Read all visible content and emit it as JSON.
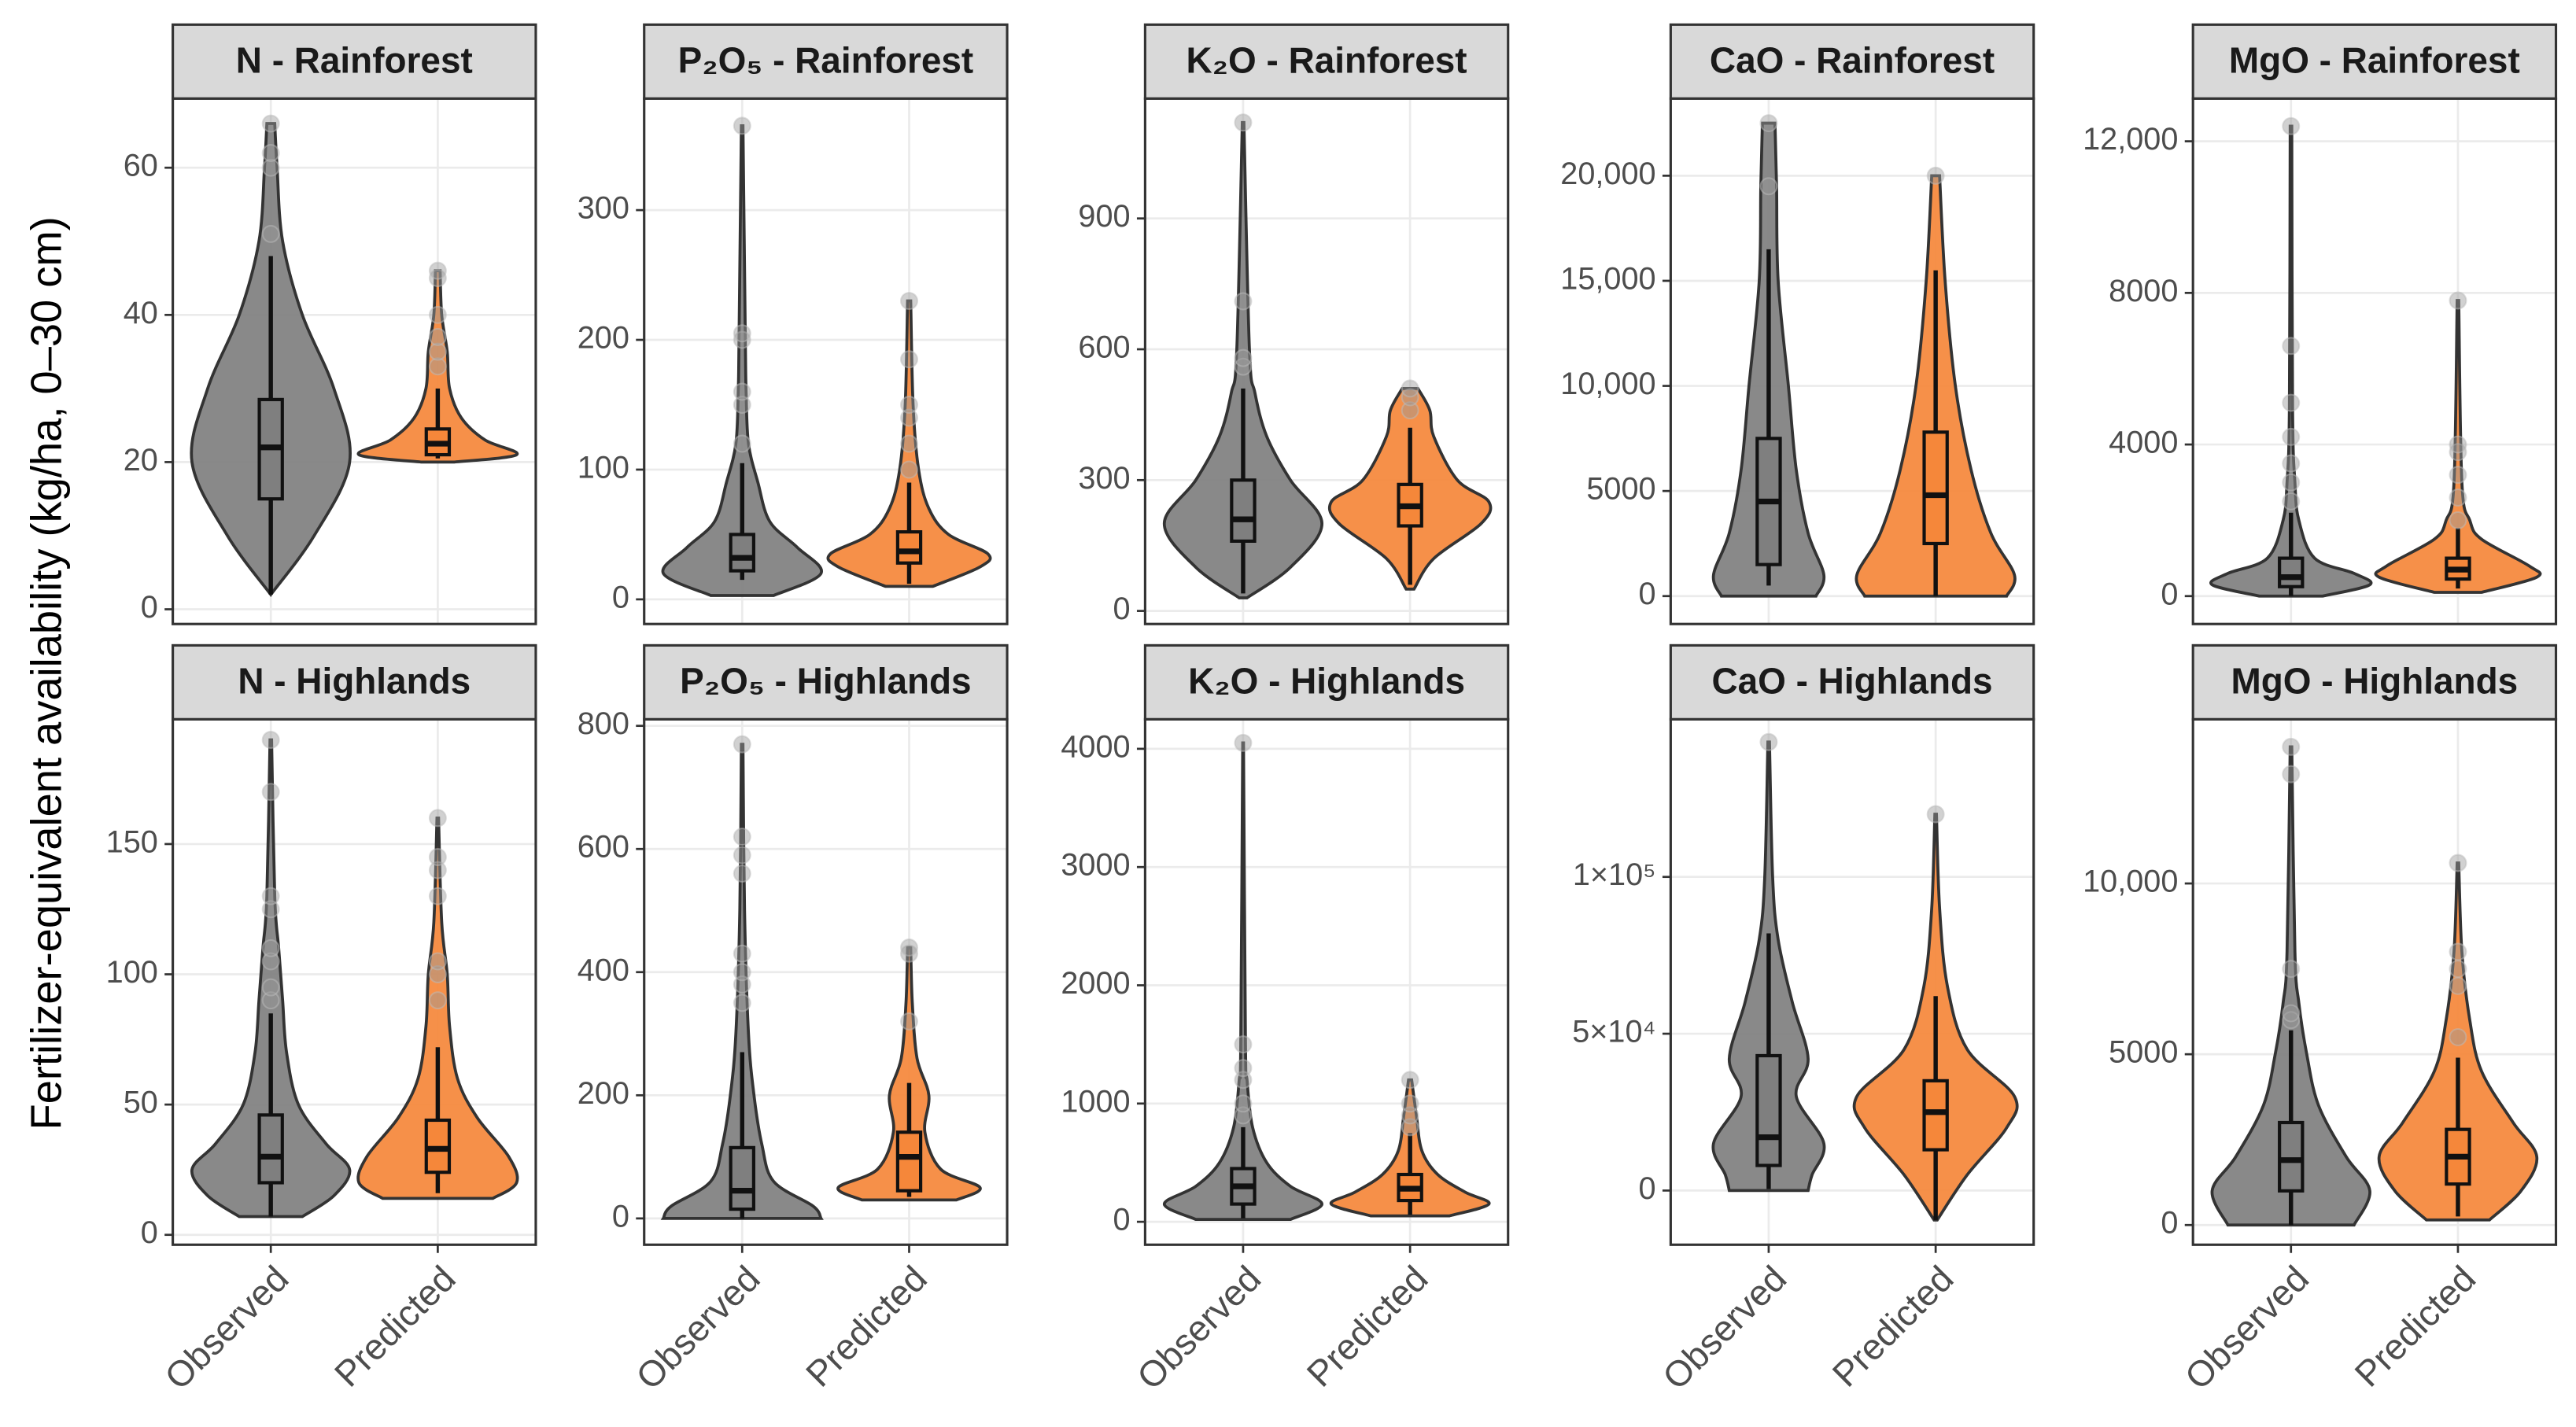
{
  "chart_data": {
    "type": "violin",
    "ylabel": "Fertilizer-equivalent availability (kg/ha, 0–30 cm)",
    "categories": [
      "Observed",
      "Predicted"
    ],
    "colors": [
      "#7f7f7f",
      "#f5873a"
    ],
    "grid": true,
    "panels": [
      {
        "title": "N - Rainforest",
        "ylim": [
          -2,
          69.4
        ],
        "yticks": [
          0,
          20,
          40,
          60
        ],
        "violins": [
          {
            "box": {
              "whisker_low": 2,
              "q1": 15,
              "median": 22,
              "q3": 28.5,
              "whisker_high": 48
            },
            "outliers": [
              51,
              60,
              62,
              66
            ],
            "violin": {
              "y": [
                2,
                10,
                20,
                30,
                40,
                50,
                60,
                66
              ],
              "width": [
                0,
                0.55,
                1,
                0.8,
                0.4,
                0.15,
                0.08,
                0.05
              ]
            }
          },
          {
            "box": {
              "whisker_low": 20.5,
              "q1": 21,
              "median": 22.5,
              "q3": 24.5,
              "whisker_high": 30
            },
            "outliers": [
              33,
              35,
              37,
              40,
              45,
              46
            ],
            "violin": {
              "y": [
                20,
                21,
                23,
                26,
                30,
                35,
                40,
                46
              ],
              "width": [
                0.2,
                1,
                0.6,
                0.3,
                0.15,
                0.12,
                0.05,
                0.03
              ]
            }
          }
        ]
      },
      {
        "title": "P₂O₅ -  Rainforest",
        "ylim": [
          -19,
          386
        ],
        "yticks": [
          0,
          100,
          200,
          300
        ],
        "violins": [
          {
            "box": {
              "whisker_low": 15,
              "q1": 22,
              "median": 32,
              "q3": 50,
              "whisker_high": 105
            },
            "outliers": [
              120,
              150,
              160,
              200,
              205,
              365
            ],
            "violin": {
              "y": [
                3,
                20,
                40,
                60,
                90,
                120,
                160,
                200,
                365
              ],
              "width": [
                0.4,
                1,
                0.7,
                0.35,
                0.2,
                0.08,
                0.05,
                0.04,
                0.01
              ]
            }
          },
          {
            "box": {
              "whisker_low": 12,
              "q1": 28,
              "median": 37,
              "q3": 52,
              "whisker_high": 90
            },
            "outliers": [
              100,
              120,
              140,
              150,
              185,
              230
            ],
            "violin": {
              "y": [
                10,
                25,
                35,
                50,
                70,
                100,
                150,
                230
              ],
              "width": [
                0.3,
                0.9,
                1,
                0.5,
                0.25,
                0.12,
                0.05,
                0.02
              ]
            }
          }
        ]
      },
      {
        "title": "K₂O -  Rainforest",
        "ylim": [
          -30,
          1175
        ],
        "yticks": [
          0,
          300,
          600,
          900
        ],
        "violins": [
          {
            "box": {
              "whisker_low": 40,
              "q1": 160,
              "median": 210,
              "q3": 300,
              "whisker_high": 510
            },
            "outliers": [
              560,
              580,
              710,
              1120
            ],
            "violin": {
              "y": [
                30,
                100,
                200,
                300,
                400,
                500,
                600,
                1120
              ],
              "width": [
                0.05,
                0.6,
                1,
                0.6,
                0.3,
                0.15,
                0.08,
                0.01
              ]
            }
          },
          {
            "box": {
              "whisker_low": 60,
              "q1": 195,
              "median": 240,
              "q3": 290,
              "whisker_high": 420
            },
            "outliers": [
              460,
              490,
              510
            ],
            "violin": {
              "y": [
                50,
                120,
                200,
                250,
                300,
                400,
                460,
                510
              ],
              "width": [
                0.05,
                0.3,
                0.9,
                1,
                0.6,
                0.3,
                0.25,
                0.1
              ]
            }
          }
        ]
      },
      {
        "title": "CaO - Rainforest",
        "ylim": [
          -1328,
          23672
        ],
        "yticks": [
          0,
          5000,
          {
            "value": 10000,
            "label": "10,000"
          },
          {
            "value": 15000,
            "label": "15,000"
          },
          {
            "value": 20000,
            "label": "20,000"
          }
        ],
        "violins": [
          {
            "box": {
              "whisker_low": 500,
              "q1": 1500,
              "median": 4500,
              "q3": 7500,
              "whisker_high": 16500
            },
            "outliers": [
              19500,
              22500
            ],
            "violin": {
              "y": [
                0,
                1000,
                3000,
                6000,
                10000,
                15000,
                19500,
                22500
              ],
              "width": [
                0.6,
                0.7,
                0.5,
                0.35,
                0.25,
                0.12,
                0.1,
                0.08
              ]
            }
          },
          {
            "box": {
              "whisker_low": 0,
              "q1": 2500,
              "median": 4800,
              "q3": 7800,
              "whisker_high": 15500
            },
            "outliers": [
              20000
            ],
            "violin": {
              "y": [
                0,
                1000,
                3000,
                6000,
                10000,
                15000,
                20000
              ],
              "width": [
                0.9,
                1,
                0.7,
                0.45,
                0.25,
                0.12,
                0.05
              ]
            }
          }
        ]
      },
      {
        "title": "MgO - Rainforest",
        "ylim": [
          -736,
          13128
        ],
        "yticks": [
          0,
          4000,
          8000,
          {
            "value": 12000,
            "label": "12,000"
          }
        ],
        "violins": [
          {
            "box": {
              "whisker_low": 0,
              "q1": 250,
              "median": 500,
              "q3": 1000,
              "whisker_high": 2200
            },
            "outliers": [
              2500,
              3000,
              3500,
              4200,
              5100,
              6600,
              12400
            ],
            "violin": {
              "y": [
                0,
                300,
                600,
                1000,
                2000,
                3000,
                5000,
                12400
              ],
              "width": [
                0.4,
                1,
                0.8,
                0.3,
                0.1,
                0.05,
                0.02,
                0.01
              ]
            }
          },
          {
            "box": {
              "whisker_low": 200,
              "q1": 450,
              "median": 700,
              "q3": 1000,
              "whisker_high": 1800
            },
            "outliers": [
              2000,
              2600,
              3200,
              3800,
              4000,
              7800
            ],
            "violin": {
              "y": [
                100,
                500,
                800,
                1500,
                2000,
                3000,
                7800
              ],
              "width": [
                0.3,
                1,
                0.9,
                0.3,
                0.15,
                0.05,
                0.01
              ]
            }
          }
        ]
      },
      {
        "title": "N - Highlands",
        "ylim": [
          -3.8,
          197.9
        ],
        "yticks": [
          0,
          50,
          100,
          150
        ],
        "violins": [
          {
            "box": {
              "whisker_low": 7,
              "q1": 20,
              "median": 30,
              "q3": 46,
              "whisker_high": 85
            },
            "outliers": [
              90,
              95,
              105,
              110,
              125,
              130,
              170,
              190
            ],
            "violin": {
              "y": [
                7,
                15,
                25,
                35,
                50,
                70,
                90,
                110,
                130,
                190
              ],
              "width": [
                0.4,
                0.8,
                1,
                0.7,
                0.35,
                0.2,
                0.15,
                0.1,
                0.05,
                0.01
              ]
            }
          },
          {
            "box": {
              "whisker_low": 16,
              "q1": 24,
              "median": 33,
              "q3": 44,
              "whisker_high": 72
            },
            "outliers": [
              90,
              100,
              105,
              130,
              140,
              145,
              160
            ],
            "violin": {
              "y": [
                14,
                20,
                30,
                45,
                60,
                80,
                100,
                120,
                160
              ],
              "width": [
                0.7,
                1,
                0.9,
                0.5,
                0.25,
                0.15,
                0.12,
                0.05,
                0.01
              ]
            }
          }
        ]
      },
      {
        "title": "P₂O₅ -  Highlands",
        "ylim": [
          -42.7,
          810.7
        ],
        "yticks": [
          0,
          200,
          400,
          600,
          800
        ],
        "violins": [
          {
            "box": {
              "whisker_low": 0,
              "q1": 15,
              "median": 45,
              "q3": 115,
              "whisker_high": 270
            },
            "outliers": [
              350,
              380,
              400,
              430,
              560,
              590,
              620,
              770
            ],
            "violin": {
              "y": [
                0,
                20,
                60,
                120,
                200,
                300,
                500,
                770
              ],
              "width": [
                1,
                0.9,
                0.4,
                0.25,
                0.15,
                0.08,
                0.03,
                0.01
              ]
            }
          },
          {
            "box": {
              "whisker_low": 35,
              "q1": 45,
              "median": 100,
              "q3": 140,
              "whisker_high": 220
            },
            "outliers": [
              320,
              430,
              440
            ],
            "violin": {
              "y": [
                30,
                50,
                80,
                140,
                200,
                260,
                350,
                440
              ],
              "width": [
                0.6,
                0.9,
                0.4,
                0.2,
                0.25,
                0.1,
                0.04,
                0.02
              ]
            }
          }
        ]
      },
      {
        "title": "K₂O -  Highlands",
        "ylim": [
          -194,
          4250
        ],
        "yticks": [
          0,
          1000,
          2000,
          3000,
          4000
        ],
        "violins": [
          {
            "box": {
              "whisker_low": 30,
              "q1": 150,
              "median": 300,
              "q3": 450,
              "whisker_high": 800
            },
            "outliers": [
              900,
              1000,
              1200,
              1300,
              1500,
              4050
            ],
            "violin": {
              "y": [
                20,
                150,
                300,
                500,
                800,
                1200,
                1500,
                4050
              ],
              "width": [
                0.6,
                1,
                0.6,
                0.3,
                0.12,
                0.05,
                0.03,
                0.005
              ]
            }
          },
          {
            "box": {
              "whisker_low": 60,
              "q1": 180,
              "median": 280,
              "q3": 400,
              "whisker_high": 750
            },
            "outliers": [
              800,
              900,
              1000,
              1200
            ],
            "violin": {
              "y": [
                50,
                150,
                250,
                400,
                600,
                900,
                1200
              ],
              "width": [
                0.5,
                1,
                0.7,
                0.35,
                0.15,
                0.08,
                0.02
              ]
            }
          }
        ]
      },
      {
        "title": "CaO - Highlands",
        "ylim": [
          -17277,
          150262
        ],
        "yticks": [
          0,
          {
            "value": 50000,
            "label": "5×10⁴"
          },
          {
            "value": 100000,
            "label": "1×10⁵"
          }
        ],
        "violins": [
          {
            "box": {
              "whisker_low": 500,
              "q1": 8000,
              "median": 17000,
              "q3": 43000,
              "whisker_high": 82000
            },
            "outliers": [
              143000
            ],
            "violin": {
              "y": [
                0,
                5000,
                15000,
                30000,
                42000,
                60000,
                80000,
                100000,
                143000
              ],
              "width": [
                0.5,
                0.55,
                0.7,
                0.35,
                0.5,
                0.3,
                0.12,
                0.05,
                0.01
              ]
            }
          },
          {
            "box": {
              "whisker_low": -9400,
              "q1": 13000,
              "median": 25000,
              "q3": 35000,
              "whisker_high": 62000
            },
            "outliers": [
              120000
            ],
            "violin": {
              "y": [
                -9400,
                5000,
                20000,
                30000,
                45000,
                65000,
                90000,
                120000
              ],
              "width": [
                0.02,
                0.4,
                0.9,
                1,
                0.4,
                0.15,
                0.05,
                0.01
              ]
            }
          }
        ]
      },
      {
        "title": "MgO - Highlands",
        "ylim": [
          -577,
          14808
        ],
        "yticks": [
          0,
          5000,
          {
            "value": 10000,
            "label": "10,000"
          }
        ],
        "violins": [
          {
            "box": {
              "whisker_low": 0,
              "q1": 1000,
              "median": 1900,
              "q3": 3000,
              "whisker_high": 5700
            },
            "outliers": [
              6000,
              6200,
              7500,
              13200,
              14000
            ],
            "violin": {
              "y": [
                0,
                1000,
                2000,
                3500,
                5000,
                6500,
                8000,
                14000
              ],
              "width": [
                0.8,
                1,
                0.7,
                0.35,
                0.2,
                0.1,
                0.05,
                0.01
              ]
            }
          },
          {
            "box": {
              "whisker_low": 250,
              "q1": 1200,
              "median": 2000,
              "q3": 2800,
              "whisker_high": 4900
            },
            "outliers": [
              5500,
              7000,
              7500,
              8000,
              10600
            ],
            "violin": {
              "y": [
                150,
                1000,
                2000,
                3000,
                4500,
                6000,
                8000,
                10600
              ],
              "width": [
                0.4,
                0.8,
                1,
                0.7,
                0.3,
                0.15,
                0.05,
                0.01
              ]
            }
          }
        ]
      }
    ]
  }
}
